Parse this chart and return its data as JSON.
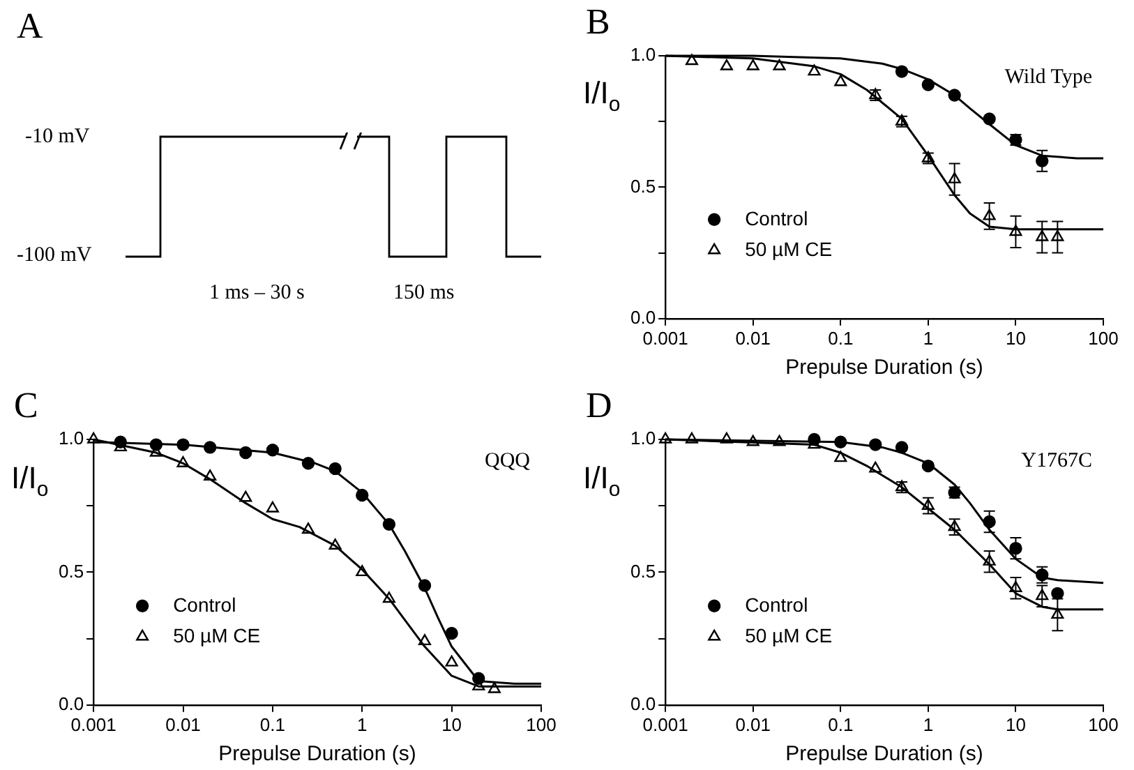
{
  "chart_data": [
    {
      "type": "other",
      "title": "A",
      "annotations": [
        "-10 mV",
        "-100 mV",
        "1 ms – 30 s",
        "150 ms"
      ]
    },
    {
      "type": "scatter",
      "title": "B",
      "xlabel": "Prepulse Duration (s)",
      "ylabel": "I/I$_{o}$",
      "annotations": [
        "Wild Type"
      ],
      "log": "x",
      "xlim": [
        0.001,
        100
      ],
      "xticks": [
        0.001,
        0.01,
        0.1,
        1,
        10,
        100
      ],
      "ylim": [
        0,
        1
      ],
      "yticks": [
        {
          "value": 0,
          "label": "0.0"
        },
        {
          "value": 0.25,
          "label": null
        },
        {
          "value": 0.5,
          "label": "0.5"
        },
        {
          "value": 0.75,
          "label": null
        },
        {
          "value": 1,
          "label": "1.0"
        }
      ],
      "grid": false,
      "legend": "bottom left",
      "series": [
        {
          "name": "Control",
          "type": "scatter",
          "marker": "circle",
          "color": "#000000",
          "x": [
            0.5,
            1,
            2,
            5,
            10,
            20
          ],
          "values": [
            0.94,
            0.89,
            0.85,
            0.76,
            0.68,
            0.6
          ],
          "errors": [
            null,
            null,
            null,
            null,
            0.02,
            0.04
          ]
        },
        {
          "name": "50 µM CE",
          "type": "scatter",
          "marker": "triangle",
          "color": "#000000",
          "x": [
            0.002,
            0.005,
            0.01,
            0.02,
            0.05,
            0.1,
            0.25,
            0.5,
            1,
            2,
            5,
            10,
            20,
            30
          ],
          "values": [
            0.98,
            0.96,
            0.96,
            0.96,
            0.94,
            0.9,
            0.85,
            0.75,
            0.61,
            0.53,
            0.39,
            0.33,
            0.31,
            0.31
          ],
          "errors": [
            null,
            null,
            null,
            null,
            null,
            null,
            0.02,
            0.02,
            0.02,
            0.06,
            0.05,
            0.06,
            0.06,
            0.06
          ]
        },
        {
          "type": "line",
          "marker": "none",
          "color": "#000000",
          "x": [
            0.001,
            0.01,
            0.1,
            0.3,
            0.5,
            1,
            2,
            3,
            5,
            10,
            20,
            50,
            100
          ],
          "values": [
            1,
            1,
            0.99,
            0.97,
            0.95,
            0.91,
            0.85,
            0.8,
            0.74,
            0.66,
            0.62,
            0.61,
            0.61
          ]
        },
        {
          "type": "line",
          "marker": "none",
          "color": "#000000",
          "x": [
            0.001,
            0.01,
            0.05,
            0.1,
            0.2,
            0.5,
            1,
            2,
            3,
            5,
            10,
            100
          ],
          "values": [
            1,
            0.99,
            0.96,
            0.93,
            0.87,
            0.76,
            0.62,
            0.47,
            0.4,
            0.35,
            0.34,
            0.34
          ]
        }
      ]
    },
    {
      "type": "scatter",
      "title": "C",
      "xlabel": "Prepulse Duration (s)",
      "ylabel": "I/I$_{o}$",
      "annotations": [
        "QQQ"
      ],
      "log": "x",
      "xlim": [
        0.001,
        100
      ],
      "xticks": [
        0.001,
        0.01,
        0.1,
        1,
        10,
        100
      ],
      "ylim": [
        0,
        1
      ],
      "yticks": [
        {
          "value": 0,
          "label": "0.0"
        },
        {
          "value": 0.25,
          "label": null
        },
        {
          "value": 0.5,
          "label": "0.5"
        },
        {
          "value": 0.75,
          "label": null
        },
        {
          "value": 1,
          "label": "1.0"
        }
      ],
      "grid": false,
      "legend": "bottom left",
      "series": [
        {
          "name": "Control",
          "type": "scatter",
          "marker": "circle",
          "color": "#000000",
          "x": [
            0.002,
            0.005,
            0.01,
            0.02,
            0.05,
            0.1,
            0.25,
            0.5,
            1,
            2,
            5,
            10,
            20
          ],
          "values": [
            0.99,
            0.98,
            0.98,
            0.97,
            0.95,
            0.96,
            0.91,
            0.89,
            0.79,
            0.68,
            0.45,
            0.27,
            0.1
          ]
        },
        {
          "name": "50 µM CE",
          "type": "scatter",
          "marker": "triangle",
          "color": "#000000",
          "x": [
            0.001,
            0.002,
            0.005,
            0.01,
            0.02,
            0.05,
            0.1,
            0.25,
            0.5,
            1,
            2,
            5,
            10,
            20,
            30
          ],
          "values": [
            1,
            0.97,
            0.95,
            0.91,
            0.86,
            0.78,
            0.74,
            0.66,
            0.6,
            0.5,
            0.4,
            0.24,
            0.16,
            0.07,
            0.06
          ]
        },
        {
          "type": "line",
          "marker": "none",
          "color": "#000000",
          "x": [
            0.001,
            0.01,
            0.1,
            0.3,
            0.5,
            1,
            2,
            3,
            5,
            7,
            10,
            20,
            50,
            100
          ],
          "values": [
            0.99,
            0.98,
            0.95,
            0.91,
            0.88,
            0.8,
            0.68,
            0.58,
            0.44,
            0.33,
            0.22,
            0.09,
            0.08,
            0.08
          ]
        },
        {
          "type": "line",
          "marker": "none",
          "color": "#000000",
          "x": [
            0.001,
            0.005,
            0.01,
            0.02,
            0.05,
            0.1,
            0.2,
            0.5,
            1,
            2,
            3,
            5,
            10,
            20,
            100
          ],
          "values": [
            1,
            0.95,
            0.91,
            0.85,
            0.76,
            0.7,
            0.67,
            0.6,
            0.51,
            0.4,
            0.32,
            0.22,
            0.11,
            0.07,
            0.07
          ]
        }
      ]
    },
    {
      "type": "scatter",
      "title": "D",
      "xlabel": "Prepulse Duration (s)",
      "ylabel": "I/I$_{o}$",
      "annotations": [
        "Y1767C"
      ],
      "log": "x",
      "xlim": [
        0.001,
        100
      ],
      "xticks": [
        0.001,
        0.01,
        0.1,
        1,
        10,
        100
      ],
      "ylim": [
        0,
        1
      ],
      "yticks": [
        {
          "value": 0,
          "label": "0.0"
        },
        {
          "value": 0.25,
          "label": null
        },
        {
          "value": 0.5,
          "label": "0.5"
        },
        {
          "value": 0.75,
          "label": null
        },
        {
          "value": 1,
          "label": "1.0"
        }
      ],
      "grid": false,
      "legend": "bottom left",
      "series": [
        {
          "name": "Control",
          "type": "scatter",
          "marker": "circle",
          "color": "#000000",
          "x": [
            0.05,
            0.1,
            0.25,
            0.5,
            1,
            2,
            5,
            10,
            20,
            30
          ],
          "values": [
            1,
            0.99,
            0.98,
            0.97,
            0.9,
            0.8,
            0.69,
            0.59,
            0.49,
            0.42
          ],
          "errors": [
            null,
            null,
            null,
            null,
            null,
            0.02,
            0.04,
            0.04,
            0.03,
            null
          ]
        },
        {
          "name": "50 µM CE",
          "type": "scatter",
          "marker": "triangle",
          "color": "#000000",
          "x": [
            0.001,
            0.002,
            0.005,
            0.01,
            0.02,
            0.05,
            0.1,
            0.25,
            0.5,
            1,
            2,
            5,
            10,
            20,
            30
          ],
          "values": [
            1,
            1,
            1,
            0.99,
            0.99,
            0.98,
            0.93,
            0.89,
            0.82,
            0.75,
            0.67,
            0.54,
            0.44,
            0.41,
            0.34
          ],
          "errors": [
            null,
            null,
            null,
            null,
            null,
            null,
            null,
            null,
            0.02,
            0.03,
            0.03,
            0.04,
            0.04,
            0.04,
            0.06
          ]
        },
        {
          "type": "line",
          "marker": "none",
          "color": "#000000",
          "x": [
            0.001,
            0.1,
            0.3,
            0.5,
            1,
            2,
            3,
            5,
            10,
            20,
            30,
            100
          ],
          "values": [
            1,
            0.99,
            0.97,
            0.95,
            0.91,
            0.83,
            0.76,
            0.66,
            0.55,
            0.48,
            0.47,
            0.46
          ]
        },
        {
          "type": "line",
          "marker": "none",
          "color": "#000000",
          "x": [
            0.001,
            0.05,
            0.1,
            0.2,
            0.5,
            1,
            2,
            5,
            10,
            20,
            30,
            100
          ],
          "values": [
            1,
            0.98,
            0.95,
            0.9,
            0.82,
            0.74,
            0.66,
            0.53,
            0.42,
            0.37,
            0.36,
            0.36
          ]
        }
      ]
    }
  ]
}
